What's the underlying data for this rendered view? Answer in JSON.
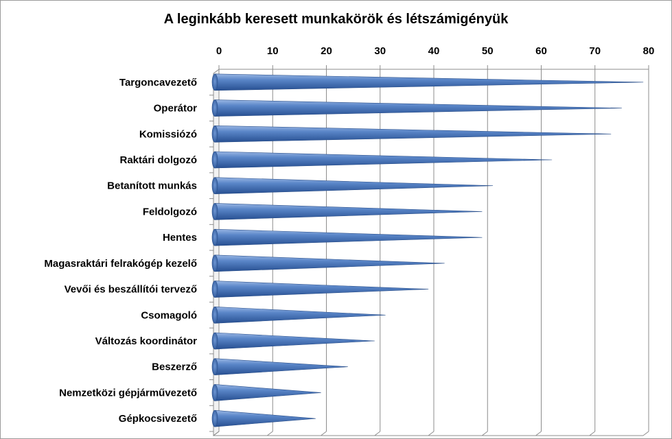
{
  "chart_data": {
    "type": "bar",
    "orientation": "horizontal",
    "style": "3d-cone",
    "title": "A leginkább keresett munkakörök és létszámigényük",
    "xlabel": "",
    "ylabel": "",
    "xlim": [
      0,
      80
    ],
    "ticks": [
      0,
      10,
      20,
      30,
      40,
      50,
      60,
      70,
      80
    ],
    "axis_position": "top",
    "grid": true,
    "legend": "none",
    "bar_color": "#3f6fba",
    "categories": [
      "Targoncavezető",
      "Operátor",
      "Komissiózó",
      "Raktári dolgozó",
      "Betanított munkás",
      "Feldolgozó",
      "Hentes",
      "Magasraktári felrakógép kezelő",
      "Vevői és beszállítói tervező",
      "Csomagoló",
      "Változás koordinátor",
      "Beszerző",
      "Nemzetközi gépjárművezető",
      "Gépkocsivezető"
    ],
    "values": [
      79,
      75,
      73,
      62,
      51,
      49,
      49,
      42,
      39,
      31,
      29,
      24,
      19,
      18
    ]
  }
}
